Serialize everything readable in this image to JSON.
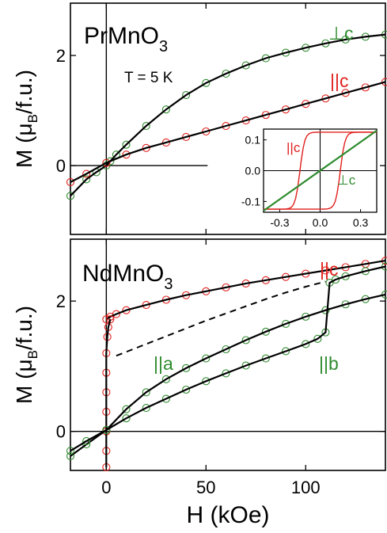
{
  "figure": {
    "xlabel_main": "H (kOe)",
    "ylabel_part1": "M (",
    "ylabel_mu": "μ",
    "ylabel_sub": "B",
    "ylabel_part2": "/f.u.)"
  },
  "colors": {
    "green": "#2e8b2e",
    "red": "#e0201c",
    "fit": "#000000"
  },
  "chart_data": [
    {
      "type": "scatter",
      "panel": "top",
      "title_main": "PrMnO",
      "title_sub": "3",
      "annotation": "T = 5 K",
      "xlim": [
        -18,
        140
      ],
      "ylim": [
        -1.25,
        2.95
      ],
      "xticks": [
        0,
        50,
        100
      ],
      "yticks": [
        0,
        2
      ],
      "ytick_labels": [
        "0",
        "2"
      ],
      "series": [
        {
          "name": "⊥c",
          "color": "green",
          "x": [
            -18,
            -10,
            -5,
            0,
            2,
            5,
            10,
            20,
            30,
            40,
            50,
            60,
            70,
            80,
            90,
            100,
            110,
            120,
            130,
            140
          ],
          "y": [
            -0.55,
            -0.25,
            -0.12,
            0.0,
            0.08,
            0.2,
            0.38,
            0.72,
            1.02,
            1.28,
            1.5,
            1.67,
            1.82,
            1.95,
            2.05,
            2.14,
            2.22,
            2.29,
            2.34,
            2.38
          ]
        },
        {
          "name": "||c",
          "color": "red",
          "x": [
            -18,
            -10,
            0,
            10,
            20,
            30,
            40,
            50,
            60,
            70,
            80,
            90,
            100,
            110,
            120,
            130,
            140
          ],
          "y": [
            -0.3,
            -0.15,
            0.05,
            0.2,
            0.32,
            0.42,
            0.52,
            0.62,
            0.72,
            0.82,
            0.92,
            1.02,
            1.12,
            1.22,
            1.32,
            1.42,
            1.52
          ]
        }
      ],
      "inset": {
        "xlim": [
          -0.42,
          0.42
        ],
        "ylim": [
          -0.135,
          0.135
        ],
        "xticks": [
          -0.3,
          0.0,
          0.3
        ],
        "xtick_labels": [
          "-0.3",
          "0.0",
          "0.3"
        ],
        "yticks": [
          0.1,
          0.0,
          -0.1
        ],
        "ytick_labels": [
          "0.1",
          "0.0",
          "-0.1"
        ],
        "label_parallel_c": "||c",
        "label_perp_c": "⊥c",
        "parallel_c_loop": {
          "coercive_field": 0.15,
          "saturation": 0.125
        },
        "perp_c_line": {
          "x": [
            -0.42,
            0.42
          ],
          "y": [
            -0.13,
            0.13
          ]
        }
      }
    },
    {
      "type": "scatter",
      "panel": "bottom",
      "title_main": "NdMnO",
      "title_sub": "3",
      "xlim": [
        -18,
        140
      ],
      "ylim": [
        -0.6,
        2.95
      ],
      "xticks": [
        0,
        50,
        100
      ],
      "xtick_labels": [
        "0",
        "50",
        "100"
      ],
      "yticks": [
        0,
        2
      ],
      "ytick_labels": [
        "0",
        "2"
      ],
      "series": [
        {
          "name": "||c",
          "color": "red",
          "x": [
            0,
            2,
            5,
            10,
            20,
            30,
            40,
            50,
            60,
            70,
            80,
            90,
            100,
            110,
            120,
            130,
            140
          ],
          "y": [
            1.72,
            1.76,
            1.8,
            1.86,
            1.94,
            2.02,
            2.09,
            2.15,
            2.21,
            2.27,
            2.32,
            2.37,
            2.42,
            2.47,
            2.52,
            2.57,
            2.62
          ]
        },
        {
          "name": "||c-low-field",
          "color": "red",
          "x": [
            0,
            0,
            0,
            0,
            0,
            0,
            0,
            0.5,
            1,
            2
          ],
          "y": [
            -0.55,
            -0.3,
            0.0,
            0.3,
            0.6,
            0.9,
            1.2,
            1.45,
            1.6,
            1.72
          ]
        },
        {
          "name": "||a",
          "color": "green",
          "x": [
            -18,
            -10,
            0,
            10,
            20,
            30,
            40,
            50,
            60,
            70,
            80,
            90,
            100,
            110,
            120,
            130,
            140
          ],
          "y": [
            -0.38,
            -0.2,
            0.02,
            0.34,
            0.6,
            0.8,
            0.97,
            1.12,
            1.26,
            1.4,
            1.53,
            1.65,
            1.76,
            1.86,
            1.95,
            2.03,
            2.1
          ]
        },
        {
          "name": "||b",
          "color": "green",
          "x": [
            -18,
            -10,
            0,
            10,
            20,
            30,
            40,
            50,
            60,
            70,
            80,
            90,
            100,
            106,
            110,
            112,
            115,
            120,
            130,
            140
          ],
          "y": [
            -0.3,
            -0.15,
            0.02,
            0.2,
            0.36,
            0.5,
            0.64,
            0.77,
            0.89,
            1.01,
            1.12,
            1.23,
            1.34,
            1.42,
            1.52,
            2.28,
            2.33,
            2.38,
            2.46,
            2.53
          ]
        }
      ],
      "dashed_curve": {
        "x": [
          5,
          10,
          20,
          30,
          40,
          50,
          60,
          70,
          80,
          90,
          100,
          110
        ],
        "y": [
          1.16,
          1.22,
          1.34,
          1.46,
          1.58,
          1.7,
          1.81,
          1.92,
          2.03,
          2.13,
          2.22,
          2.3
        ]
      },
      "labels": {
        "c": "||c",
        "a": "||a",
        "b": "||b"
      }
    }
  ]
}
